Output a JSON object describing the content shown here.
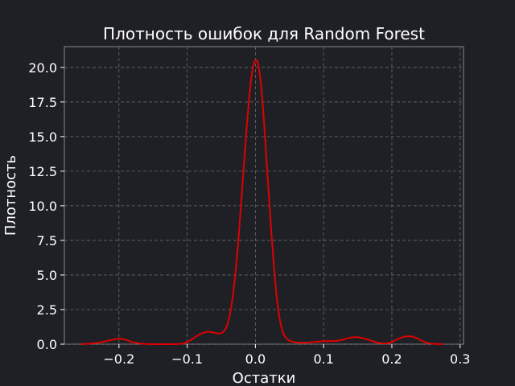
{
  "chart_data": {
    "type": "line",
    "title": "Плотность ошибок для Random Forest",
    "xlabel": "Остатки",
    "ylabel": "Плотность",
    "xlim": [
      -0.28,
      0.305
    ],
    "ylim": [
      0,
      21.5
    ],
    "grid": true,
    "xticks": [
      -0.2,
      -0.1,
      0.0,
      0.1,
      0.2,
      0.3
    ],
    "xtick_labels": [
      "−0.2",
      "−0.1",
      "0.0",
      "0.1",
      "0.2",
      "0.3"
    ],
    "yticks": [
      0,
      2.5,
      5,
      7.5,
      10,
      12.5,
      15,
      17.5,
      20
    ],
    "ytick_labels": [
      "0.0",
      "2.5",
      "5.0",
      "7.5",
      "10.0",
      "12.5",
      "15.0",
      "17.5",
      "20.0"
    ],
    "series": [
      {
        "color": "#e00000",
        "x": [
          -0.255,
          -0.24,
          -0.225,
          -0.21,
          -0.2,
          -0.19,
          -0.18,
          -0.165,
          -0.15,
          -0.13,
          -0.11,
          -0.1,
          -0.09,
          -0.08,
          -0.07,
          -0.062,
          -0.055,
          -0.048,
          -0.042,
          -0.036,
          -0.03,
          -0.025,
          -0.02,
          -0.015,
          -0.01,
          -0.005,
          0.0,
          0.004,
          0.008,
          0.012,
          0.016,
          0.02,
          0.025,
          0.03,
          0.035,
          0.04,
          0.045,
          0.05,
          0.06,
          0.07,
          0.08,
          0.09,
          0.1,
          0.11,
          0.12,
          0.13,
          0.14,
          0.15,
          0.16,
          0.17,
          0.18,
          0.19,
          0.2,
          0.21,
          0.22,
          0.23,
          0.24,
          0.25,
          0.26,
          0.275
        ],
        "y": [
          0.0,
          0.05,
          0.15,
          0.32,
          0.4,
          0.32,
          0.15,
          0.03,
          0.0,
          0.0,
          0.02,
          0.15,
          0.45,
          0.75,
          0.9,
          0.85,
          0.78,
          0.85,
          1.3,
          2.5,
          4.8,
          7.5,
          10.8,
          14.2,
          17.3,
          19.6,
          20.5,
          20.2,
          18.8,
          16.5,
          13.5,
          10.5,
          7.0,
          4.0,
          2.0,
          0.9,
          0.45,
          0.25,
          0.12,
          0.1,
          0.12,
          0.18,
          0.22,
          0.22,
          0.25,
          0.35,
          0.48,
          0.5,
          0.4,
          0.25,
          0.1,
          0.05,
          0.15,
          0.4,
          0.55,
          0.55,
          0.35,
          0.12,
          0.03,
          0.0
        ]
      }
    ]
  }
}
